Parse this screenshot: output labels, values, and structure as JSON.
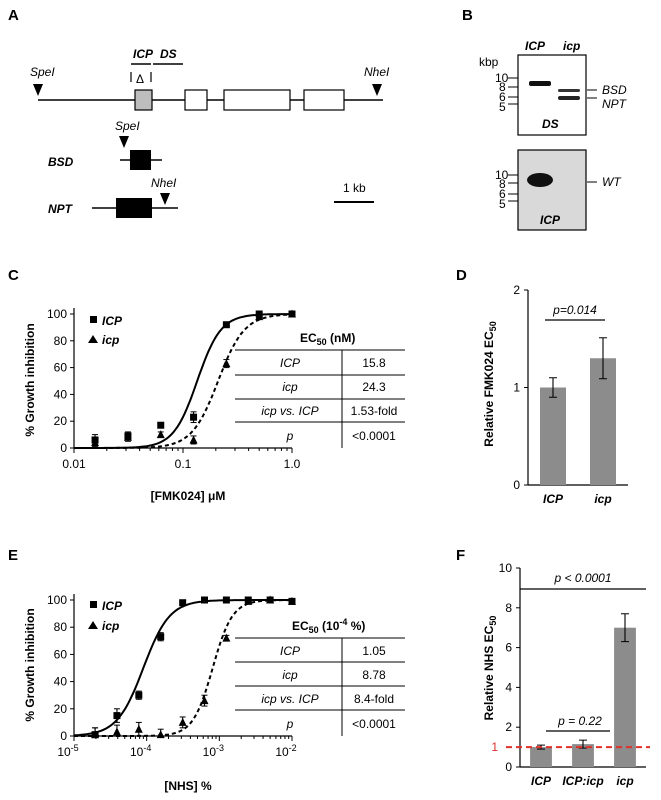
{
  "panel_A": {
    "letter": "A",
    "site_left": "SpeI",
    "site_right": "NheI",
    "probe_icp": "ICP",
    "probe_ds": "DS",
    "delta": "Δ",
    "bsd_label": "BSD",
    "bsd_site": "SpeI",
    "npt_label": "NPT",
    "npt_site": "NheI",
    "scale": "1 kb"
  },
  "panel_B": {
    "letter": "B",
    "unit": "kbp",
    "lane_icp": "ICP",
    "lane_icp_mut": "icp",
    "blot1_marks": [
      "10",
      "8",
      "6",
      "5"
    ],
    "blot1_probe": "DS",
    "blot1_bands": [
      "BSD",
      "NPT"
    ],
    "blot2_marks": [
      "10",
      "8",
      "6",
      "5"
    ],
    "blot2_probe": "ICP",
    "blot2_band": "WT"
  },
  "panel_C": {
    "letter": "C",
    "ylabel": "% Growth inhibition",
    "xlabel": "[FMK024] μM",
    "yticks": [
      "0",
      "20",
      "40",
      "60",
      "80",
      "100"
    ],
    "xticks": [
      "0.01",
      "0.1",
      "1.0"
    ],
    "legend": [
      "ICP",
      "icp"
    ],
    "table_header": "EC",
    "table_header_sub": "50",
    "table_header_unit": " (nM)",
    "table": [
      [
        "ICP",
        "15.8"
      ],
      [
        "icp",
        "24.3"
      ],
      [
        "icp vs. ICP",
        "1.53-fold"
      ],
      [
        "p",
        "<0.0001"
      ]
    ]
  },
  "panel_D": {
    "letter": "D",
    "ylabel": "Relative FMK024 EC",
    "ylabel_sub": "50",
    "yticks": [
      "0",
      "1",
      "2"
    ],
    "categories": [
      "ICP",
      "icp"
    ],
    "pvalue": "p=0.014"
  },
  "panel_E": {
    "letter": "E",
    "ylabel": "% Growth inhibition",
    "xlabel": "[NHS] %",
    "yticks": [
      "0",
      "20",
      "40",
      "60",
      "80",
      "100"
    ],
    "xticks": [
      "10",
      "10",
      "10",
      "10"
    ],
    "xtick_exp": [
      "-5",
      "-4",
      "-3",
      "-2"
    ],
    "legend": [
      "ICP",
      "icp"
    ],
    "table_header": "EC",
    "table_header_sub": "50",
    "table_header_unit": " (10",
    "table_header_exp": "-4",
    "table_header_unit2": " %)",
    "table": [
      [
        "ICP",
        "1.05"
      ],
      [
        "icp",
        "8.78"
      ],
      [
        "icp vs. ICP",
        "8.4-fold"
      ],
      [
        "p",
        "<0.0001"
      ]
    ]
  },
  "panel_F": {
    "letter": "F",
    "ylabel": "Relative NHS EC",
    "ylabel_sub": "50",
    "yticks": [
      "0",
      "2",
      "4",
      "6",
      "8",
      "10"
    ],
    "red_tick": "1",
    "categories": [
      "ICP",
      "ICP:icp",
      "icp"
    ],
    "p1": "p = 0.22",
    "p2": "p < 0.0001"
  },
  "chart_data": [
    {
      "type": "scatter",
      "panel": "C",
      "xlabel": "[FMK024] μM",
      "ylabel": "% Growth inhibition",
      "xscale": "log",
      "xlim": [
        0.01,
        1.0
      ],
      "ylim": [
        0,
        100
      ],
      "series": [
        {
          "name": "ICP",
          "x": [
            0.0156,
            0.03125,
            0.0625,
            0.125,
            0.25,
            0.5,
            1.0
          ],
          "y": [
            6,
            9,
            17,
            23,
            92,
            100,
            100
          ],
          "err": [
            4,
            3,
            2,
            4,
            2,
            1,
            1
          ]
        },
        {
          "name": "icp",
          "x": [
            0.0156,
            0.03125,
            0.0625,
            0.125,
            0.25,
            0.5,
            1.0
          ],
          "y": [
            4,
            8,
            10,
            6,
            63,
            98,
            100
          ],
          "err": [
            3,
            3,
            2,
            3,
            3,
            1,
            1
          ]
        }
      ],
      "ec50_nM": {
        "ICP": 15.8,
        "icp": 24.3
      }
    },
    {
      "type": "bar",
      "panel": "D",
      "ylabel": "Relative FMK024 EC50",
      "categories": [
        "ICP",
        "icp"
      ],
      "values": [
        1.0,
        1.3
      ],
      "err": [
        0.1,
        0.21
      ],
      "ylim": [
        0,
        2
      ]
    },
    {
      "type": "scatter",
      "panel": "E",
      "xlabel": "[NHS] %",
      "ylabel": "% Growth inhibition",
      "xscale": "log",
      "xlim": [
        1e-05,
        0.01
      ],
      "ylim": [
        0,
        100
      ],
      "series": [
        {
          "name": "ICP",
          "x": [
            1.95e-05,
            3.9e-05,
            7.8e-05,
            0.000156,
            0.000313,
            0.000625,
            0.00125,
            0.0025,
            0.005,
            0.01
          ],
          "y": [
            1,
            15,
            30,
            73,
            98,
            100,
            100,
            100,
            100,
            99
          ],
          "err": [
            5,
            5,
            3,
            3,
            1,
            1,
            1,
            1,
            1,
            1
          ]
        },
        {
          "name": "icp",
          "x": [
            1.95e-05,
            3.9e-05,
            7.8e-05,
            0.000156,
            0.000313,
            0.000625,
            0.00125,
            0.0025,
            0.005,
            0.01
          ],
          "y": [
            1,
            3,
            5,
            1,
            10,
            26,
            72,
            99,
            100,
            99
          ],
          "err": [
            5,
            5,
            5,
            4,
            4,
            4,
            2,
            1,
            1,
            1
          ]
        }
      ],
      "ec50": {
        "ICP": 1.05,
        "icp": 8.78
      }
    },
    {
      "type": "bar",
      "panel": "F",
      "ylabel": "Relative NHS EC50",
      "categories": [
        "ICP",
        "ICP:icp",
        "icp"
      ],
      "values": [
        1.0,
        1.15,
        7.0
      ],
      "err": [
        0.1,
        0.2,
        0.7
      ],
      "ylim": [
        0,
        10
      ],
      "reference_line": 1
    }
  ]
}
